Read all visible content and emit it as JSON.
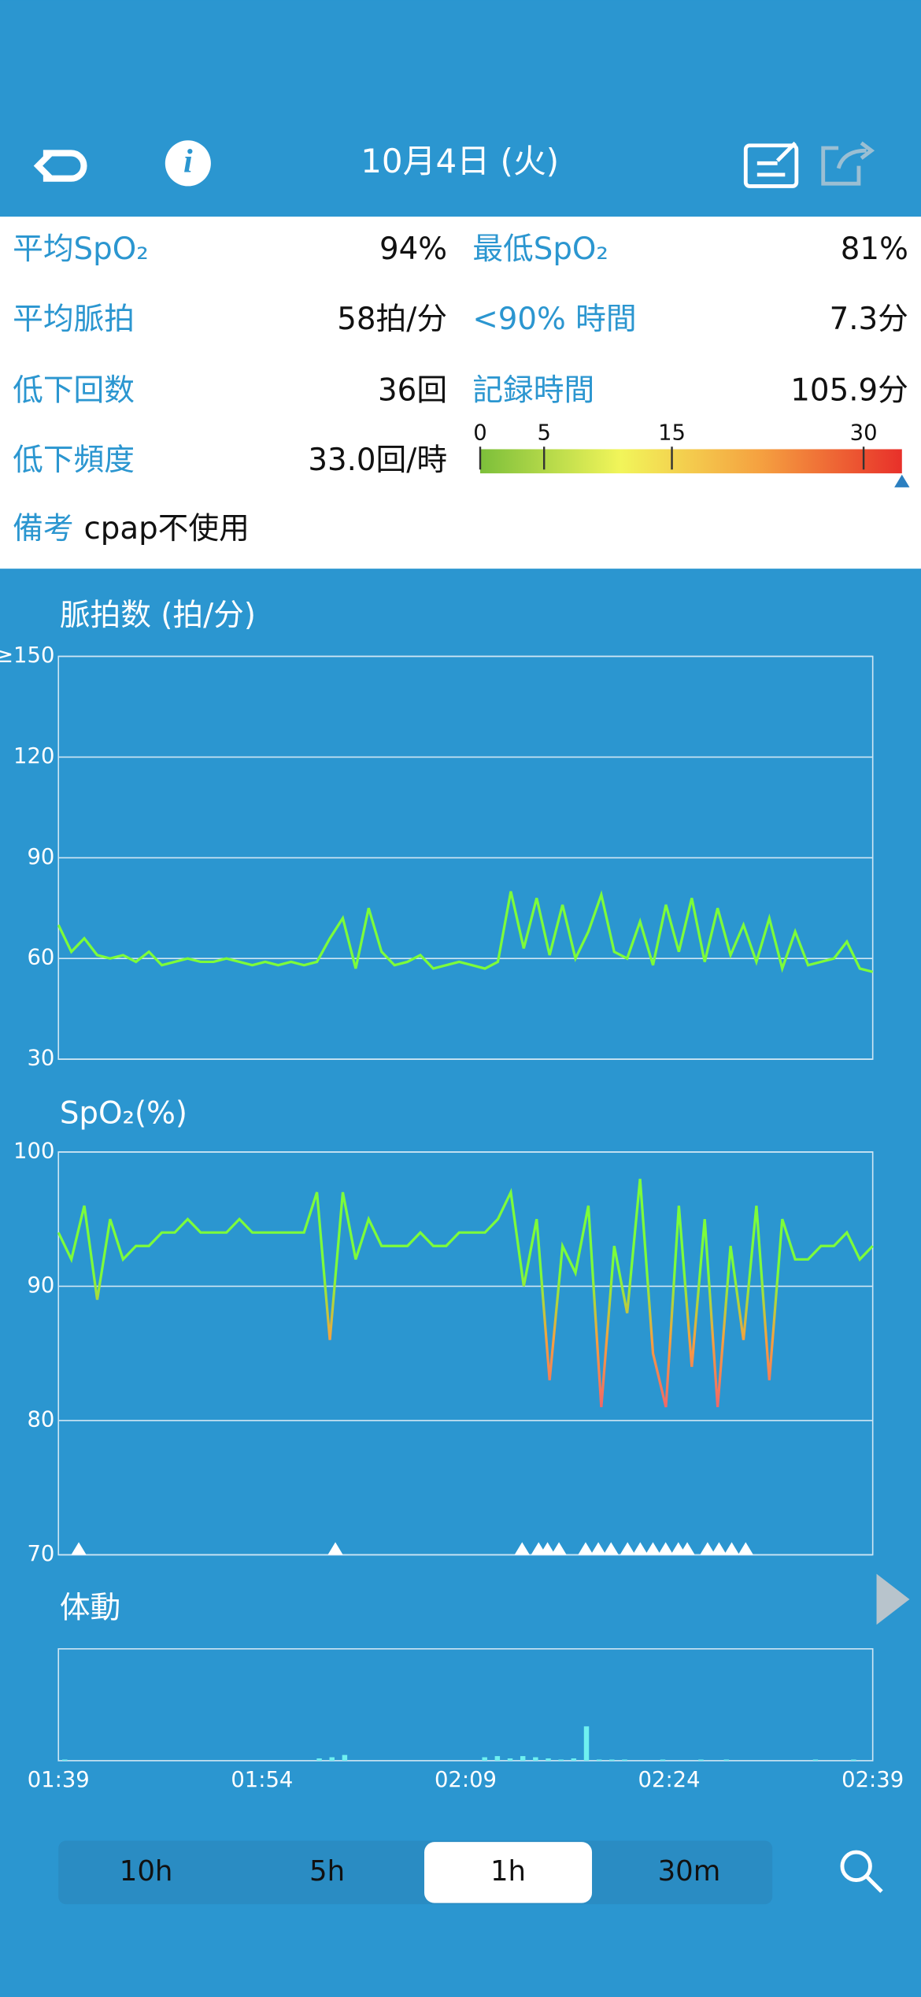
{
  "header": {
    "title": "10月4日 (火)"
  },
  "stats": {
    "left": [
      {
        "label": "平均SpO₂",
        "value": "94%"
      },
      {
        "label": "平均脈拍",
        "value": "58拍/分"
      },
      {
        "label": "低下回数",
        "value": "36回"
      },
      {
        "label": "低下頻度",
        "value": "33.0回/時"
      }
    ],
    "right": [
      {
        "label": "最低SpO₂",
        "value": "81%"
      },
      {
        "label": "<90% 時間",
        "value": "7.3分"
      },
      {
        "label": "記録時間",
        "value": "105.9分"
      }
    ]
  },
  "scale": {
    "ticks": [
      0,
      5,
      15,
      30
    ],
    "xlim": [
      0,
      33
    ],
    "value": 33,
    "colors": [
      "#7cbf3a",
      "#f2f55a",
      "#f5a040",
      "#e8302a"
    ]
  },
  "note": {
    "label": "備考",
    "text": "cpap不使用"
  },
  "chart_data": [
    {
      "type": "line",
      "title": "脈拍数 (拍/分)",
      "color": "#7dfc3a",
      "ylim": [
        30,
        150
      ],
      "yticks": [
        30,
        60,
        90,
        120,
        {
          "value": 150,
          "label": "≥150"
        }
      ],
      "grid": true,
      "values": [
        70,
        62,
        66,
        61,
        60,
        61,
        59,
        62,
        58,
        59,
        60,
        59,
        59,
        60,
        59,
        58,
        59,
        58,
        59,
        58,
        59,
        66,
        72,
        57,
        75,
        62,
        58,
        59,
        61,
        57,
        58,
        59,
        58,
        57,
        59,
        80,
        63,
        78,
        61,
        76,
        60,
        68,
        79,
        62,
        60,
        71,
        58,
        76,
        62,
        78,
        59,
        75,
        61,
        70,
        59,
        72,
        57,
        68,
        58,
        59,
        60,
        65,
        57,
        56
      ]
    },
    {
      "type": "line",
      "title": "SpO₂(%)",
      "colors": [
        "#7dfc3a",
        "#f5a040",
        "#f06868"
      ],
      "ylim": [
        70,
        100
      ],
      "yticks": [
        70,
        80,
        90,
        100
      ],
      "grid": true,
      "values": [
        94,
        92,
        96,
        89,
        95,
        92,
        93,
        93,
        94,
        94,
        95,
        94,
        94,
        94,
        95,
        94,
        94,
        94,
        94,
        94,
        97,
        86,
        97,
        92,
        95,
        93,
        93,
        93,
        94,
        93,
        93,
        94,
        94,
        94,
        95,
        97,
        90,
        95,
        83,
        93,
        91,
        96,
        81,
        93,
        88,
        98,
        85,
        81,
        96,
        84,
        95,
        81,
        93,
        86,
        96,
        83,
        95,
        92,
        92,
        93,
        93,
        94,
        92,
        93
      ]
    },
    {
      "type": "bar",
      "title": "体動",
      "color": "#6ff0f0",
      "values": [
        1,
        0,
        0,
        0,
        0,
        0,
        0,
        0,
        0,
        0,
        0,
        0,
        0,
        0,
        0,
        0,
        0,
        0,
        0,
        0,
        2,
        3,
        5,
        0,
        0,
        0,
        0,
        0,
        0,
        0,
        0,
        0,
        0,
        3,
        4,
        2,
        4,
        3,
        2,
        1,
        2,
        30,
        1,
        1,
        1,
        0,
        0,
        1,
        0,
        0,
        1,
        0,
        1,
        0,
        0,
        0,
        0,
        0,
        0,
        1,
        0,
        0,
        1,
        0
      ]
    }
  ],
  "time_axis": {
    "labels": [
      "01:39",
      "01:54",
      "02:09",
      "02:24",
      "02:39"
    ]
  },
  "range_buttons": {
    "labels": [
      "10h",
      "5h",
      "1h",
      "30m"
    ],
    "selected": 2
  }
}
